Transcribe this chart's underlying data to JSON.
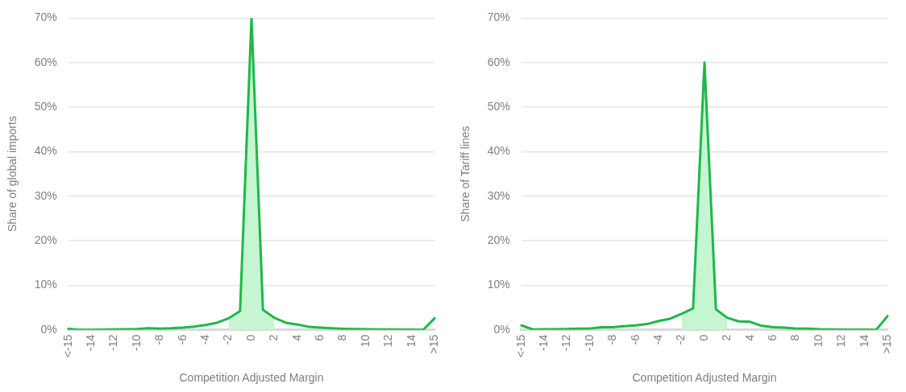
{
  "chart_data": [
    {
      "type": "line",
      "ylabel": "Share of global imports",
      "xlabel": "Competition Adjusted Margin",
      "categories": [
        "<-15",
        null,
        "-14",
        null,
        "-12",
        null,
        "-10",
        null,
        "-8",
        null,
        "-6",
        null,
        "-4",
        null,
        "-2",
        null,
        "0",
        null,
        "2",
        null,
        "4",
        null,
        "6",
        null,
        "8",
        null,
        "10",
        null,
        "12",
        null,
        "14",
        null,
        ">15"
      ],
      "series": [
        {
          "color": "#1db84a",
          "values": [
            0.25,
            0,
            0,
            0.05,
            0.1,
            0.15,
            0.2,
            0.35,
            0.3,
            0.35,
            0.5,
            0.75,
            1.1,
            1.6,
            2.6,
            4.2,
            70,
            4.5,
            2.7,
            1.6,
            1.2,
            0.7,
            0.5,
            0.35,
            0.25,
            0.2,
            0.15,
            0.1,
            0.1,
            0.05,
            0.05,
            0,
            2.6
          ]
        },
        {
          "type": "area",
          "color": "#c6f5d2",
          "values": [
            null,
            null,
            null,
            null,
            null,
            null,
            null,
            null,
            null,
            null,
            null,
            null,
            null,
            null,
            2.6,
            4.2,
            70,
            4.5,
            2.7,
            null,
            null,
            null,
            null,
            null,
            null,
            null,
            null,
            null,
            null,
            null,
            null,
            null,
            null
          ]
        }
      ],
      "ylim": [
        0,
        70
      ],
      "yticks": [
        {
          "value": 0,
          "label": "0%"
        },
        {
          "value": 10,
          "label": "10%"
        },
        {
          "value": 20,
          "label": "20%"
        },
        {
          "value": 30,
          "label": "30%"
        },
        {
          "value": 40,
          "label": "40%"
        },
        {
          "value": 50,
          "label": "50%"
        },
        {
          "value": 60,
          "label": "60%"
        },
        {
          "value": 70,
          "label": "70%"
        }
      ],
      "grid": "y",
      "marker": "none"
    },
    {
      "type": "line",
      "ylabel": "Share of Tariff lines",
      "xlabel": "Competition Adjusted Margin",
      "categories": [
        "<-15",
        null,
        "-14",
        null,
        "-12",
        null,
        "-10",
        null,
        "-8",
        null,
        "-6",
        null,
        "-4",
        null,
        "-2",
        null,
        "0",
        null,
        "2",
        null,
        "4",
        null,
        "6",
        null,
        "8",
        null,
        "10",
        null,
        "12",
        null,
        "14",
        null,
        ">15"
      ],
      "series": [
        {
          "color": "#1db84a",
          "values": [
            1.0,
            0.1,
            0.15,
            0.15,
            0.2,
            0.3,
            0.3,
            0.6,
            0.6,
            0.8,
            1.0,
            1.3,
            2.0,
            2.5,
            3.6,
            4.8,
            60,
            4.6,
            2.7,
            1.9,
            1.8,
            0.9,
            0.6,
            0.5,
            0.3,
            0.3,
            0.15,
            0.1,
            0.05,
            0.05,
            0.05,
            0,
            3.1
          ]
        },
        {
          "type": "area",
          "color": "#c6f5d2",
          "values": [
            null,
            null,
            null,
            null,
            null,
            null,
            null,
            null,
            null,
            null,
            null,
            null,
            null,
            null,
            3.6,
            4.8,
            60,
            4.6,
            2.7,
            null,
            null,
            null,
            null,
            null,
            null,
            null,
            null,
            null,
            null,
            null,
            null,
            null,
            null
          ]
        }
      ],
      "ylim": [
        0,
        70
      ],
      "yticks": [
        {
          "value": 0,
          "label": "0%"
        },
        {
          "value": 10,
          "label": "10%"
        },
        {
          "value": 20,
          "label": "20%"
        },
        {
          "value": 30,
          "label": "30%"
        },
        {
          "value": 40,
          "label": "40%"
        },
        {
          "value": 50,
          "label": "50%"
        },
        {
          "value": 60,
          "label": "60%"
        },
        {
          "value": 70,
          "label": "70%"
        }
      ],
      "grid": "y",
      "marker": "none"
    }
  ]
}
